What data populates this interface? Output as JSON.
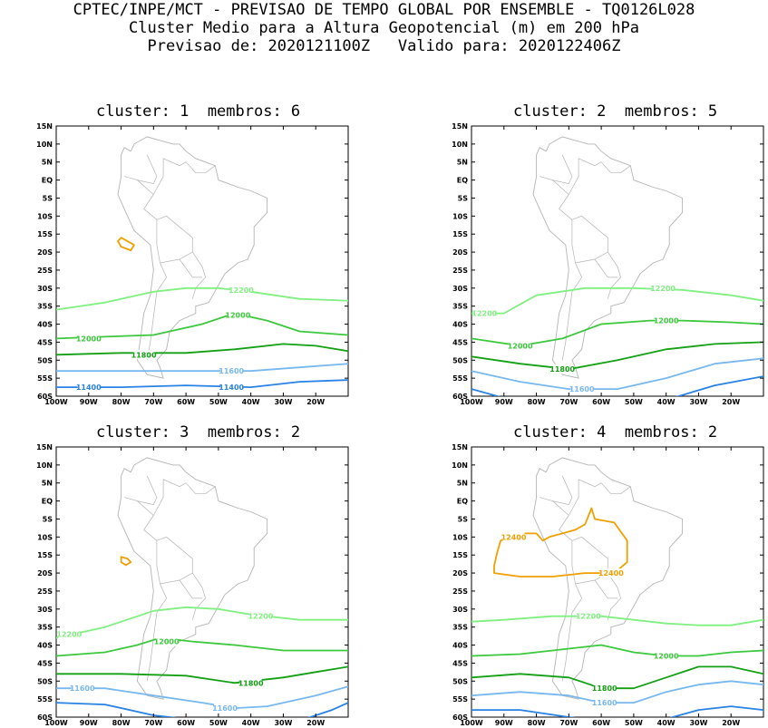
{
  "header": {
    "line1": "CPTEC/INPE/MCT - PREVISAO DE TEMPO GLOBAL POR ENSEMBLE - TQ0126L028",
    "line2": "Cluster Medio para a Altura Geopotencial (m) em 200 hPa",
    "line3": "Previsao de: 2020121100Z   Valido para: 2020122406Z"
  },
  "y_ticks": [
    "15N",
    "10N",
    "5N",
    "EQ",
    "5S",
    "10S",
    "15S",
    "20S",
    "25S",
    "30S",
    "35S",
    "40S",
    "45S",
    "50S",
    "55S",
    "60S"
  ],
  "x_ticks": [
    "100W",
    "90W",
    "80W",
    "70W",
    "60W",
    "50W",
    "40W",
    "30W",
    "20W"
  ],
  "colors": {
    "c12400": "#f0a000",
    "c12200": "#80f080",
    "c12000": "#3cc83c",
    "c11800": "#14a014",
    "c11600": "#78b8f0",
    "c11400": "#2882e6",
    "coast": "#b4b4b4"
  },
  "panels": [
    {
      "title": "cluster: 1  membros: 6",
      "contour_labels": [
        {
          "text": "12200",
          "color": "#80f080"
        },
        {
          "text": "12000",
          "color": "#3cc83c"
        },
        {
          "text": "12000",
          "color": "#3cc83c"
        },
        {
          "text": "11800",
          "color": "#14a014"
        },
        {
          "text": "11600",
          "color": "#78b8f0"
        },
        {
          "text": "11400",
          "color": "#2882e6"
        },
        {
          "text": "11400",
          "color": "#2882e6"
        }
      ]
    },
    {
      "title": "cluster: 2  membros: 5",
      "contour_labels": [
        {
          "text": "12200",
          "color": "#80f080"
        },
        {
          "text": "12200",
          "color": "#80f080"
        },
        {
          "text": "12000",
          "color": "#3cc83c"
        },
        {
          "text": "12000",
          "color": "#3cc83c"
        },
        {
          "text": "11800",
          "color": "#14a014"
        },
        {
          "text": "11600",
          "color": "#78b8f0"
        }
      ]
    },
    {
      "title": "cluster: 3  membros: 2",
      "contour_labels": [
        {
          "text": "12200",
          "color": "#80f080"
        },
        {
          "text": "12200",
          "color": "#80f080"
        },
        {
          "text": "12000",
          "color": "#3cc83c"
        },
        {
          "text": "11800",
          "color": "#14a014"
        },
        {
          "text": "11600",
          "color": "#78b8f0"
        },
        {
          "text": "11600",
          "color": "#78b8f0"
        }
      ]
    },
    {
      "title": "cluster: 4  membros: 2",
      "contour_labels": [
        {
          "text": "12400",
          "color": "#f0a000"
        },
        {
          "text": "12400",
          "color": "#f0a000"
        },
        {
          "text": "12200",
          "color": "#80f080"
        },
        {
          "text": "12000",
          "color": "#3cc83c"
        },
        {
          "text": "11800",
          "color": "#14a014"
        },
        {
          "text": "11600",
          "color": "#78b8f0"
        }
      ]
    }
  ]
}
